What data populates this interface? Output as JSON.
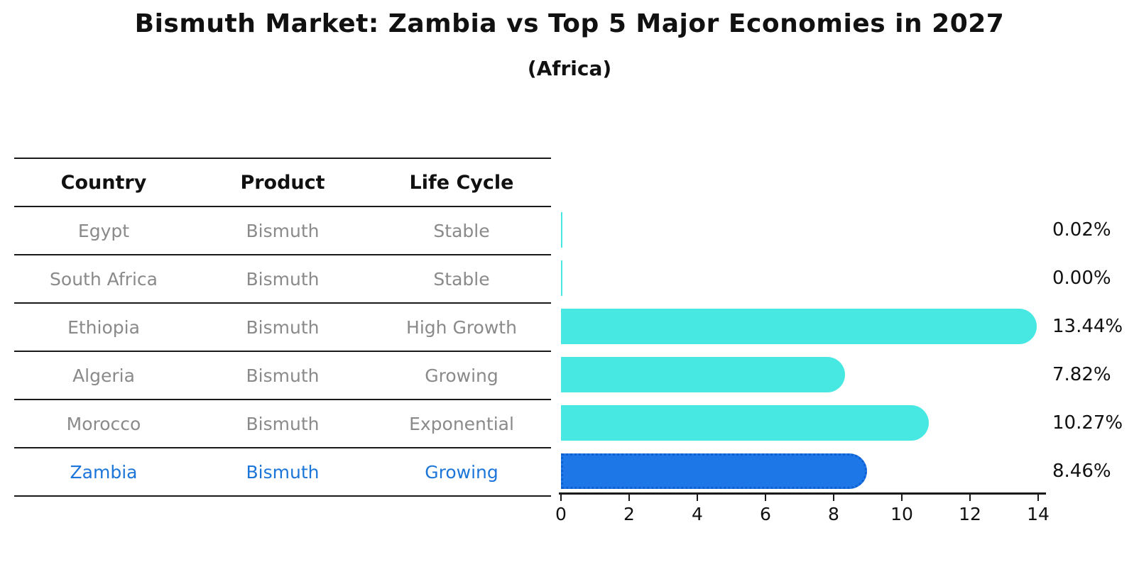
{
  "header": {
    "title": "Bismuth Market: Zambia vs Top 5 Major Economies in 2027",
    "subtitle": "(Africa)"
  },
  "table": {
    "columns": [
      "Country",
      "Product",
      "Life Cycle"
    ],
    "rows": [
      {
        "country": "Egypt",
        "product": "Bismuth",
        "life_cycle": "Stable",
        "highlight": false
      },
      {
        "country": "South Africa",
        "product": "Bismuth",
        "life_cycle": "Stable",
        "highlight": false
      },
      {
        "country": "Ethiopia",
        "product": "Bismuth",
        "life_cycle": "High Growth",
        "highlight": false
      },
      {
        "country": "Algeria",
        "product": "Bismuth",
        "life_cycle": "Growing",
        "highlight": false
      },
      {
        "country": "Morocco",
        "product": "Bismuth",
        "life_cycle": "Exponential",
        "highlight": false
      },
      {
        "country": "Zambia",
        "product": "Bismuth",
        "life_cycle": "Growing",
        "highlight": true
      }
    ]
  },
  "chart_data": {
    "type": "bar",
    "orientation": "horizontal",
    "title": "Bismuth Market: Zambia vs Top 5 Major Economies in 2027",
    "subtitle": "(Africa)",
    "categories": [
      "Egypt",
      "South Africa",
      "Ethiopia",
      "Algeria",
      "Morocco",
      "Zambia"
    ],
    "values": [
      0.02,
      0.0,
      13.44,
      7.82,
      10.27,
      8.46
    ],
    "value_labels": [
      "0.02%",
      "0.00%",
      "13.44%",
      "7.82%",
      "10.27%",
      "8.46%"
    ],
    "unit": "%",
    "highlight_category": "Zambia",
    "xlim": [
      0,
      14
    ],
    "x_ticks": [
      0,
      2,
      4,
      6,
      8,
      10,
      12,
      14
    ],
    "grid": false,
    "legend": "none",
    "colors": {
      "bar": "#47e8e2",
      "highlight_bar": "#1e77e6",
      "highlight_bar_border": "#0d5fd2",
      "highlight_text": "#1c76d9",
      "axis": "#1a1a1a",
      "table_text": "#8a8a8a",
      "header_text": "#111111",
      "value_label_text": "#111111"
    }
  }
}
